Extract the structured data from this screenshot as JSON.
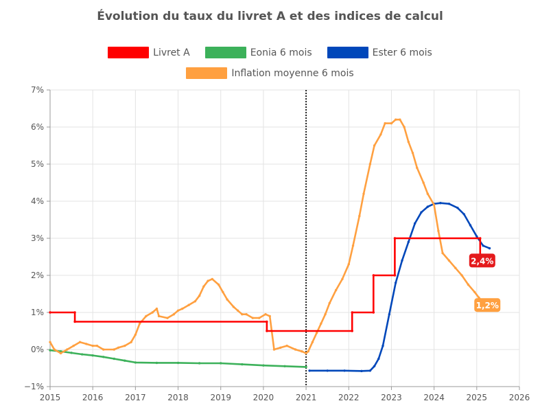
{
  "chart_data": {
    "type": "line",
    "title": "Évolution du taux du livret A et des indices de calcul",
    "legend_position": "top",
    "grid": true,
    "xlim": [
      2015,
      2026
    ],
    "ylim": [
      -1,
      7
    ],
    "x_ticks": [
      "2015",
      "2016",
      "2017",
      "2018",
      "2019",
      "2020",
      "2021",
      "2022",
      "2023",
      "2024",
      "2025",
      "2026"
    ],
    "y_ticks": [
      "−1%",
      "0%",
      "1%",
      "2%",
      "3%",
      "4%",
      "5%",
      "6%",
      "7%"
    ],
    "vertical_marker_x": 2021.0,
    "series": [
      {
        "name": "Livret A",
        "color": "#ff0000",
        "step": true,
        "points": [
          [
            2015.0,
            1.0
          ],
          [
            2015.58,
            1.0
          ],
          [
            2015.58,
            0.75
          ],
          [
            2020.08,
            0.75
          ],
          [
            2020.08,
            0.5
          ],
          [
            2022.08,
            0.5
          ],
          [
            2022.08,
            1.0
          ],
          [
            2022.58,
            1.0
          ],
          [
            2022.58,
            2.0
          ],
          [
            2023.08,
            2.0
          ],
          [
            2023.08,
            3.0
          ],
          [
            2025.08,
            3.0
          ],
          [
            2025.08,
            2.4
          ]
        ],
        "end_label": "2,4%",
        "end_label_bg": "#e41a1c"
      },
      {
        "name": "Eonia 6 mois",
        "color": "#3cb15a",
        "step": false,
        "points": [
          [
            2015.0,
            -0.02
          ],
          [
            2015.25,
            -0.05
          ],
          [
            2015.5,
            -0.09
          ],
          [
            2015.75,
            -0.13
          ],
          [
            2016.0,
            -0.16
          ],
          [
            2016.25,
            -0.2
          ],
          [
            2016.5,
            -0.25
          ],
          [
            2016.75,
            -0.3
          ],
          [
            2017.0,
            -0.35
          ],
          [
            2017.5,
            -0.36
          ],
          [
            2018.0,
            -0.36
          ],
          [
            2018.5,
            -0.37
          ],
          [
            2019.0,
            -0.37
          ],
          [
            2019.5,
            -0.4
          ],
          [
            2020.0,
            -0.43
          ],
          [
            2020.5,
            -0.45
          ],
          [
            2021.0,
            -0.47
          ]
        ]
      },
      {
        "name": "Ester 6 mois",
        "color": "#0047ba",
        "step": false,
        "points": [
          [
            2021.08,
            -0.57
          ],
          [
            2021.5,
            -0.57
          ],
          [
            2021.9,
            -0.57
          ],
          [
            2022.3,
            -0.58
          ],
          [
            2022.5,
            -0.57
          ],
          [
            2022.6,
            -0.45
          ],
          [
            2022.7,
            -0.25
          ],
          [
            2022.8,
            0.1
          ],
          [
            2022.95,
            0.95
          ],
          [
            2023.1,
            1.8
          ],
          [
            2023.25,
            2.4
          ],
          [
            2023.4,
            2.9
          ],
          [
            2023.55,
            3.4
          ],
          [
            2023.7,
            3.7
          ],
          [
            2023.85,
            3.85
          ],
          [
            2024.0,
            3.93
          ],
          [
            2024.15,
            3.95
          ],
          [
            2024.35,
            3.93
          ],
          [
            2024.55,
            3.82
          ],
          [
            2024.7,
            3.65
          ],
          [
            2024.85,
            3.35
          ],
          [
            2025.0,
            3.05
          ],
          [
            2025.15,
            2.8
          ],
          [
            2025.3,
            2.73
          ]
        ]
      },
      {
        "name": "Inflation moyenne 6 mois",
        "color": "#ffa040",
        "step": false,
        "points": [
          [
            2015.0,
            0.2
          ],
          [
            2015.1,
            0.0
          ],
          [
            2015.25,
            -0.1
          ],
          [
            2015.4,
            0.0
          ],
          [
            2015.55,
            0.1
          ],
          [
            2015.7,
            0.2
          ],
          [
            2015.85,
            0.15
          ],
          [
            2016.0,
            0.1
          ],
          [
            2016.1,
            0.1
          ],
          [
            2016.25,
            0.0
          ],
          [
            2016.5,
            0.0
          ],
          [
            2016.6,
            0.05
          ],
          [
            2016.75,
            0.1
          ],
          [
            2016.9,
            0.2
          ],
          [
            2017.0,
            0.4
          ],
          [
            2017.1,
            0.7
          ],
          [
            2017.25,
            0.9
          ],
          [
            2017.4,
            1.0
          ],
          [
            2017.5,
            1.1
          ],
          [
            2017.55,
            0.9
          ],
          [
            2017.75,
            0.85
          ],
          [
            2017.9,
            0.95
          ],
          [
            2018.0,
            1.05
          ],
          [
            2018.1,
            1.1
          ],
          [
            2018.25,
            1.2
          ],
          [
            2018.4,
            1.3
          ],
          [
            2018.5,
            1.45
          ],
          [
            2018.6,
            1.7
          ],
          [
            2018.7,
            1.85
          ],
          [
            2018.8,
            1.9
          ],
          [
            2018.95,
            1.75
          ],
          [
            2019.05,
            1.55
          ],
          [
            2019.15,
            1.35
          ],
          [
            2019.3,
            1.15
          ],
          [
            2019.4,
            1.05
          ],
          [
            2019.5,
            0.95
          ],
          [
            2019.6,
            0.95
          ],
          [
            2019.75,
            0.85
          ],
          [
            2019.9,
            0.85
          ],
          [
            2020.05,
            0.95
          ],
          [
            2020.15,
            0.9
          ],
          [
            2020.25,
            0.0
          ],
          [
            2020.4,
            0.05
          ],
          [
            2020.55,
            0.1
          ],
          [
            2020.75,
            0.0
          ],
          [
            2020.9,
            -0.05
          ],
          [
            2021.0,
            -0.1
          ],
          [
            2021.05,
            -0.05
          ],
          [
            2021.15,
            0.2
          ],
          [
            2021.25,
            0.45
          ],
          [
            2021.35,
            0.7
          ],
          [
            2021.45,
            0.95
          ],
          [
            2021.55,
            1.25
          ],
          [
            2021.7,
            1.6
          ],
          [
            2021.85,
            1.9
          ],
          [
            2022.0,
            2.3
          ],
          [
            2022.1,
            2.8
          ],
          [
            2022.25,
            3.6
          ],
          [
            2022.35,
            4.2
          ],
          [
            2022.5,
            5.0
          ],
          [
            2022.6,
            5.5
          ],
          [
            2022.75,
            5.8
          ],
          [
            2022.85,
            6.1
          ],
          [
            2023.0,
            6.1
          ],
          [
            2023.1,
            6.2
          ],
          [
            2023.2,
            6.2
          ],
          [
            2023.3,
            6.0
          ],
          [
            2023.4,
            5.6
          ],
          [
            2023.5,
            5.3
          ],
          [
            2023.6,
            4.9
          ],
          [
            2023.75,
            4.5
          ],
          [
            2023.85,
            4.2
          ],
          [
            2024.0,
            3.9
          ],
          [
            2024.1,
            3.2
          ],
          [
            2024.2,
            2.6
          ],
          [
            2024.35,
            2.4
          ],
          [
            2024.5,
            2.2
          ],
          [
            2024.65,
            2.0
          ],
          [
            2024.8,
            1.75
          ],
          [
            2024.95,
            1.55
          ],
          [
            2025.05,
            1.4
          ],
          [
            2025.2,
            1.2
          ]
        ],
        "end_label": "1,2%",
        "end_label_bg": "#ffa040"
      }
    ]
  }
}
